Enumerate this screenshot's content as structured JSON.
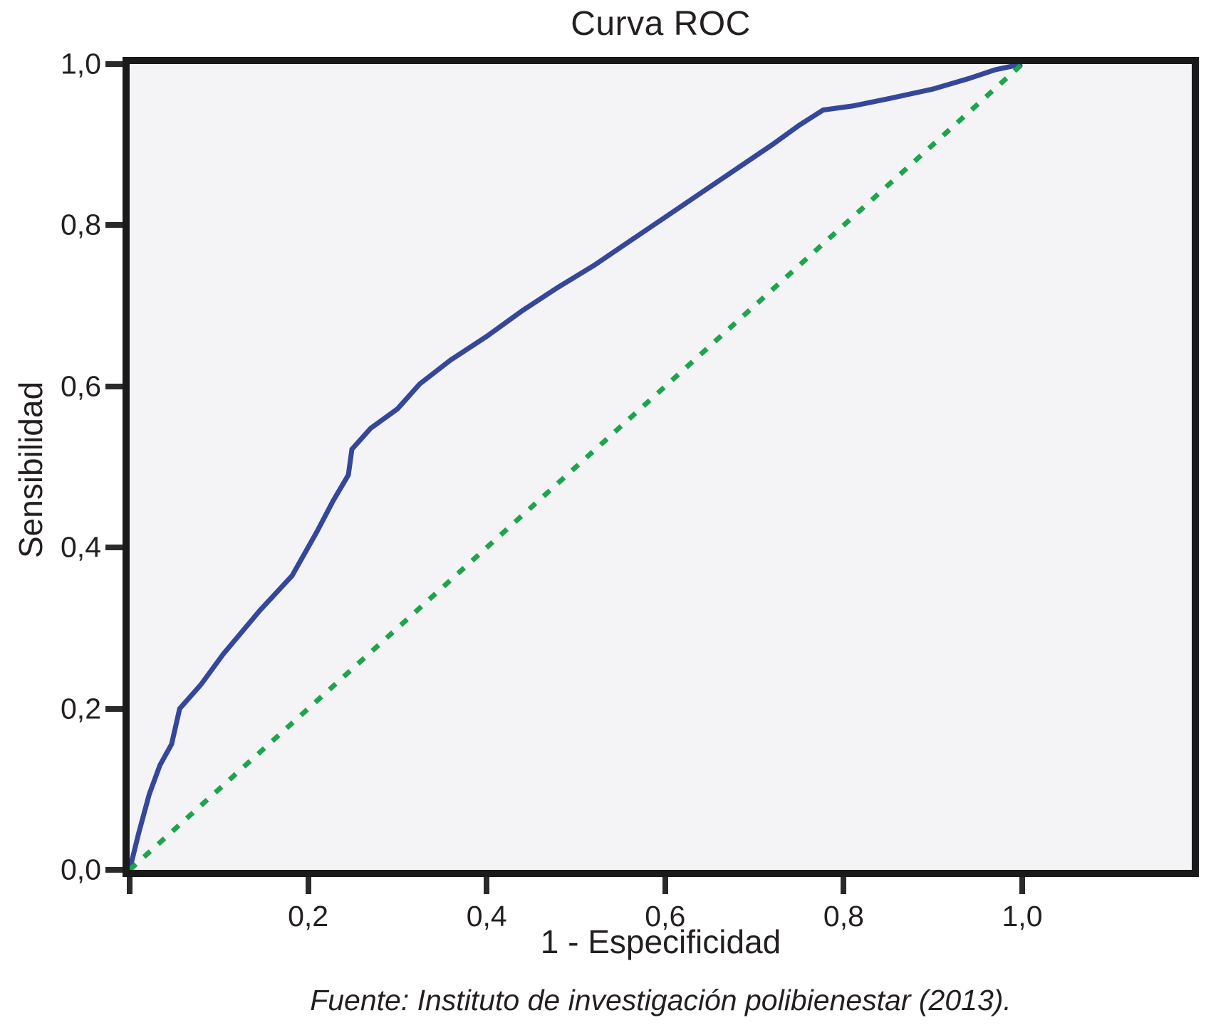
{
  "title": "Curva ROC",
  "caption": "Fuente: Instituto de investigación polibienestar (2013).",
  "y_axis": {
    "label": "Sensibilidad",
    "ticks": [
      {
        "value": 0.0,
        "label": "0,0"
      },
      {
        "value": 0.2,
        "label": "0,2"
      },
      {
        "value": 0.4,
        "label": "0,4"
      },
      {
        "value": 0.6,
        "label": "0,6"
      },
      {
        "value": 0.8,
        "label": "0,8"
      },
      {
        "value": 1.0,
        "label": "1,0"
      }
    ]
  },
  "x_axis": {
    "label": "1 - Especificidad",
    "ticks": [
      {
        "value": 0.0,
        "label": ""
      },
      {
        "value": 0.2,
        "label": "0,2"
      },
      {
        "value": 0.4,
        "label": "0,4"
      },
      {
        "value": 0.6,
        "label": "0,6"
      },
      {
        "value": 0.8,
        "label": "0,8"
      },
      {
        "value": 1.0,
        "label": "1,0"
      }
    ]
  },
  "colors": {
    "roc_curve": "#35479b",
    "reference_line": "#1fa44e",
    "plot_background": "#f4f4f6",
    "axis": "#1a1a1a",
    "text": "#231f20"
  },
  "chart_data": {
    "type": "line",
    "title": "Curva ROC",
    "xlabel": "1 - Especificidad",
    "ylabel": "Sensibilidad",
    "xlim": [
      0,
      1.19
    ],
    "ylim": [
      0,
      1.0
    ],
    "x_tick_values": [
      0.2,
      0.4,
      0.6,
      0.8,
      1.0
    ],
    "y_tick_values": [
      0.0,
      0.2,
      0.4,
      0.6,
      0.8,
      1.0
    ],
    "grid": false,
    "legend_position": "none",
    "series": [
      {
        "name": "Curva ROC",
        "style": "solid",
        "color_key": "roc_curve",
        "stroke_width": 7,
        "points": [
          [
            0.0,
            0.0
          ],
          [
            0.01,
            0.045
          ],
          [
            0.022,
            0.094
          ],
          [
            0.034,
            0.13
          ],
          [
            0.047,
            0.156
          ],
          [
            0.056,
            0.2
          ],
          [
            0.08,
            0.23
          ],
          [
            0.105,
            0.268
          ],
          [
            0.146,
            0.322
          ],
          [
            0.182,
            0.365
          ],
          [
            0.21,
            0.42
          ],
          [
            0.228,
            0.458
          ],
          [
            0.245,
            0.49
          ],
          [
            0.249,
            0.522
          ],
          [
            0.27,
            0.548
          ],
          [
            0.3,
            0.572
          ],
          [
            0.325,
            0.603
          ],
          [
            0.36,
            0.633
          ],
          [
            0.4,
            0.662
          ],
          [
            0.44,
            0.694
          ],
          [
            0.48,
            0.723
          ],
          [
            0.52,
            0.75
          ],
          [
            0.56,
            0.78
          ],
          [
            0.6,
            0.81
          ],
          [
            0.64,
            0.84
          ],
          [
            0.68,
            0.87
          ],
          [
            0.72,
            0.9
          ],
          [
            0.75,
            0.924
          ],
          [
            0.777,
            0.943
          ],
          [
            0.81,
            0.948
          ],
          [
            0.85,
            0.957
          ],
          [
            0.9,
            0.969
          ],
          [
            0.94,
            0.982
          ],
          [
            0.97,
            0.993
          ],
          [
            1.0,
            1.0
          ]
        ]
      },
      {
        "name": "Línea de referencia",
        "style": "dashed",
        "color_key": "reference_line",
        "stroke_width": 7,
        "points": [
          [
            0.0,
            0.0
          ],
          [
            1.0,
            1.0
          ]
        ]
      }
    ]
  }
}
